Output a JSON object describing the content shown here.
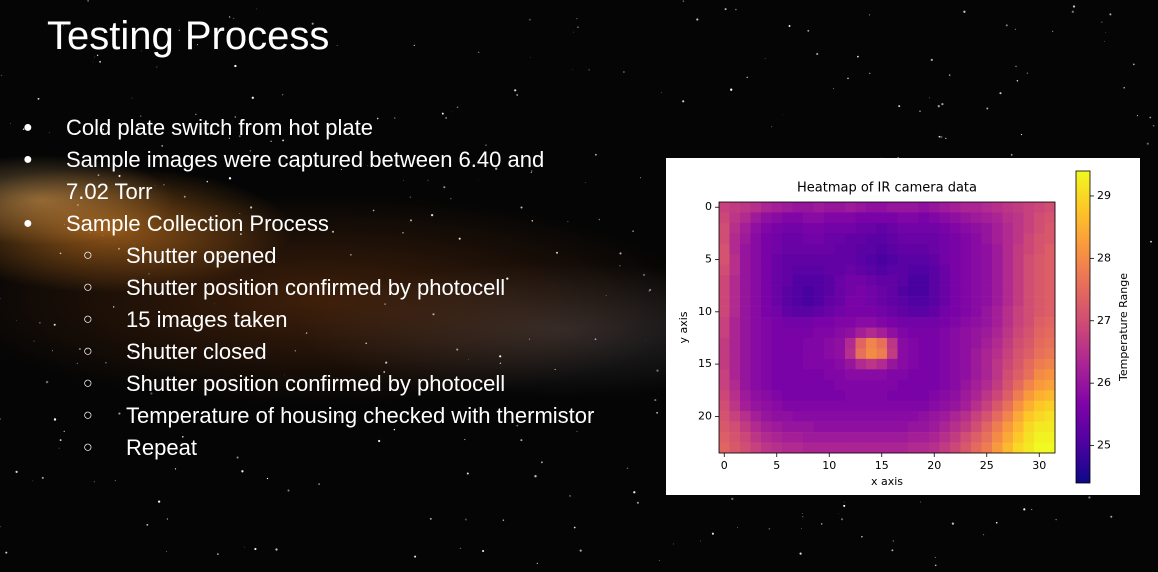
{
  "slide": {
    "title": "Testing Process",
    "bullets": [
      {
        "text": "Cold plate switch from hot plate",
        "children": []
      },
      {
        "text": "Sample images were captured between 6.40 and 7.02 Torr",
        "children": []
      },
      {
        "text": "Sample Collection Process",
        "children": [
          "Shutter opened",
          "Shutter position confirmed by photocell",
          "15 images taken",
          "Shutter closed",
          "Shutter position confirmed by photocell",
          "Temperature of housing checked with thermistor",
          "Repeat"
        ]
      }
    ]
  },
  "chart_data": {
    "type": "heatmap",
    "title": "Heatmap of IR camera data",
    "x_label": "x axis",
    "y_label": "y axis",
    "colorbar_label": "Temperature Range",
    "colormap": "plasma",
    "xlim": [
      -0.5,
      31.5
    ],
    "ylim": [
      23.5,
      -0.5
    ],
    "clim": [
      24.4,
      29.4
    ],
    "xticks": [
      0,
      5,
      10,
      15,
      20,
      25,
      30
    ],
    "yticks": [
      0,
      5,
      10,
      15,
      20
    ],
    "cticks": [
      25,
      26,
      27,
      28,
      29
    ],
    "values": [
      [
        26.8,
        26.7,
        26.6,
        26.5,
        26.3,
        26.2,
        26.1,
        26.0,
        26.0,
        26.1,
        26.0,
        26.0,
        26.1,
        26.0,
        25.9,
        25.9,
        26.0,
        26.0,
        26.0,
        25.9,
        26.0,
        26.1,
        26.2,
        26.3,
        26.3,
        26.4,
        26.5,
        26.6,
        26.7,
        26.8,
        26.9,
        27.0
      ],
      [
        26.9,
        26.6,
        26.4,
        26.1,
        25.9,
        25.8,
        25.7,
        25.7,
        25.8,
        25.8,
        25.7,
        25.7,
        25.7,
        25.6,
        25.6,
        25.6,
        25.6,
        25.7,
        25.7,
        25.6,
        25.7,
        25.8,
        25.9,
        26.0,
        26.1,
        26.2,
        26.3,
        26.5,
        26.6,
        26.8,
        27.0,
        27.1
      ],
      [
        27.0,
        26.5,
        26.2,
        25.9,
        25.7,
        25.6,
        25.5,
        25.5,
        25.6,
        25.6,
        25.5,
        25.5,
        25.5,
        25.4,
        25.4,
        25.3,
        25.4,
        25.5,
        25.5,
        25.5,
        25.5,
        25.6,
        25.7,
        25.8,
        25.9,
        26.0,
        26.2,
        26.4,
        26.6,
        26.8,
        27.0,
        27.2
      ],
      [
        27.0,
        26.4,
        26.1,
        25.8,
        25.6,
        25.5,
        25.4,
        25.4,
        25.5,
        25.5,
        25.4,
        25.4,
        25.3,
        25.3,
        25.2,
        25.2,
        25.3,
        25.4,
        25.4,
        25.4,
        25.4,
        25.5,
        25.6,
        25.7,
        25.8,
        26.0,
        26.2,
        26.4,
        26.6,
        26.9,
        27.1,
        27.2
      ],
      [
        27.1,
        26.4,
        26.0,
        25.8,
        25.6,
        25.5,
        25.4,
        25.4,
        25.4,
        25.4,
        25.4,
        25.3,
        25.3,
        25.2,
        25.2,
        25.1,
        25.2,
        25.3,
        25.3,
        25.3,
        25.4,
        25.5,
        25.6,
        25.7,
        25.8,
        25.9,
        26.1,
        26.4,
        26.7,
        26.9,
        27.1,
        27.3
      ],
      [
        27.1,
        26.5,
        26.0,
        25.8,
        25.6,
        25.4,
        25.3,
        25.3,
        25.3,
        25.3,
        25.3,
        25.3,
        25.3,
        25.2,
        25.1,
        25.0,
        25.1,
        25.2,
        25.2,
        25.2,
        25.3,
        25.5,
        25.6,
        25.7,
        25.8,
        25.9,
        26.1,
        26.4,
        26.7,
        27.0,
        27.2,
        27.3
      ],
      [
        27.0,
        26.5,
        26.0,
        25.8,
        25.6,
        25.4,
        25.3,
        25.2,
        25.2,
        25.2,
        25.3,
        25.3,
        25.4,
        25.3,
        25.2,
        25.1,
        25.2,
        25.2,
        25.1,
        25.1,
        25.2,
        25.4,
        25.6,
        25.7,
        25.8,
        25.9,
        26.1,
        26.4,
        26.7,
        27.0,
        27.2,
        27.3
      ],
      [
        26.9,
        26.4,
        26.0,
        25.8,
        25.6,
        25.4,
        25.3,
        25.1,
        25.1,
        25.1,
        25.2,
        25.4,
        25.5,
        25.5,
        25.4,
        25.3,
        25.3,
        25.2,
        25.0,
        25.0,
        25.2,
        25.4,
        25.6,
        25.7,
        25.8,
        25.9,
        26.1,
        26.4,
        26.7,
        27.0,
        27.2,
        27.3
      ],
      [
        26.9,
        26.4,
        26.0,
        25.8,
        25.6,
        25.4,
        25.2,
        25.1,
        25.0,
        25.1,
        25.2,
        25.4,
        25.5,
        25.6,
        25.5,
        25.4,
        25.3,
        25.1,
        25.0,
        25.0,
        25.2,
        25.4,
        25.6,
        25.7,
        25.8,
        25.9,
        26.1,
        26.4,
        26.7,
        27.0,
        27.2,
        27.3
      ],
      [
        26.9,
        26.4,
        26.0,
        25.8,
        25.6,
        25.4,
        25.2,
        25.1,
        25.0,
        25.1,
        25.3,
        25.4,
        25.6,
        25.6,
        25.5,
        25.4,
        25.3,
        25.2,
        25.1,
        25.1,
        25.2,
        25.4,
        25.6,
        25.7,
        25.8,
        25.9,
        26.1,
        26.4,
        26.7,
        27.0,
        27.2,
        27.3
      ],
      [
        26.9,
        26.4,
        26.0,
        25.8,
        25.6,
        25.5,
        25.3,
        25.2,
        25.2,
        25.3,
        25.4,
        25.5,
        25.6,
        25.6,
        25.6,
        25.5,
        25.4,
        25.3,
        25.2,
        25.2,
        25.3,
        25.5,
        25.6,
        25.7,
        25.8,
        26.0,
        26.2,
        26.5,
        26.8,
        27.0,
        27.2,
        27.3
      ],
      [
        26.8,
        26.3,
        26.0,
        25.8,
        25.7,
        25.6,
        25.5,
        25.5,
        25.5,
        25.6,
        25.6,
        25.7,
        25.7,
        25.8,
        25.8,
        25.7,
        25.6,
        25.5,
        25.5,
        25.5,
        25.5,
        25.6,
        25.7,
        25.8,
        25.9,
        26.0,
        26.2,
        26.5,
        26.8,
        27.0,
        27.3,
        27.4
      ],
      [
        26.8,
        26.3,
        26.0,
        25.8,
        25.7,
        25.6,
        25.6,
        25.6,
        25.6,
        25.7,
        25.7,
        25.8,
        25.9,
        26.2,
        26.4,
        26.2,
        25.9,
        25.7,
        25.6,
        25.6,
        25.6,
        25.7,
        25.8,
        25.9,
        26.0,
        26.1,
        26.3,
        26.6,
        26.9,
        27.1,
        27.4,
        27.5
      ],
      [
        26.7,
        26.3,
        26.0,
        25.8,
        25.7,
        25.6,
        25.6,
        25.6,
        25.7,
        25.7,
        25.8,
        25.9,
        26.4,
        27.4,
        27.9,
        27.6,
        26.6,
        25.8,
        25.7,
        25.6,
        25.6,
        25.7,
        25.8,
        25.9,
        26.0,
        26.2,
        26.4,
        26.7,
        27.0,
        27.2,
        27.5,
        27.6
      ],
      [
        26.7,
        26.3,
        26.0,
        25.8,
        25.7,
        25.6,
        25.6,
        25.6,
        25.7,
        25.7,
        25.8,
        25.9,
        26.5,
        27.6,
        28.0,
        27.8,
        26.7,
        25.8,
        25.7,
        25.6,
        25.6,
        25.7,
        25.8,
        25.9,
        26.1,
        26.3,
        26.5,
        26.8,
        27.1,
        27.3,
        27.6,
        27.7
      ],
      [
        26.7,
        26.3,
        26.0,
        25.8,
        25.7,
        25.6,
        25.6,
        25.6,
        25.7,
        25.7,
        25.7,
        25.8,
        26.0,
        26.4,
        26.6,
        26.4,
        26.0,
        25.8,
        25.7,
        25.6,
        25.6,
        25.7,
        25.8,
        25.9,
        26.1,
        26.3,
        26.6,
        26.9,
        27.2,
        27.5,
        27.8,
        27.9
      ],
      [
        26.8,
        26.3,
        26.0,
        25.8,
        25.7,
        25.6,
        25.6,
        25.6,
        25.6,
        25.6,
        25.7,
        25.7,
        25.8,
        25.8,
        25.8,
        25.8,
        25.7,
        25.7,
        25.6,
        25.6,
        25.6,
        25.7,
        25.8,
        25.9,
        26.1,
        26.3,
        26.6,
        27.0,
        27.3,
        27.6,
        28.0,
        28.1
      ],
      [
        26.8,
        26.4,
        26.0,
        25.8,
        25.7,
        25.6,
        25.6,
        25.6,
        25.6,
        25.6,
        25.6,
        25.7,
        25.7,
        25.7,
        25.7,
        25.7,
        25.7,
        25.6,
        25.6,
        25.6,
        25.6,
        25.7,
        25.8,
        26.0,
        26.2,
        26.4,
        26.7,
        27.1,
        27.5,
        27.9,
        28.2,
        28.3
      ],
      [
        26.9,
        26.5,
        26.1,
        25.9,
        25.8,
        25.7,
        25.6,
        25.6,
        25.6,
        25.6,
        25.6,
        25.6,
        25.7,
        25.7,
        25.7,
        25.7,
        25.6,
        25.6,
        25.6,
        25.6,
        25.7,
        25.8,
        25.9,
        26.1,
        26.3,
        26.6,
        26.9,
        27.3,
        27.8,
        28.2,
        28.5,
        28.6
      ],
      [
        27.0,
        26.6,
        26.2,
        26.0,
        25.9,
        25.8,
        25.7,
        25.7,
        25.7,
        25.7,
        25.7,
        25.7,
        25.7,
        25.7,
        25.7,
        25.7,
        25.7,
        25.7,
        25.7,
        25.7,
        25.8,
        25.9,
        26.0,
        26.2,
        26.5,
        26.8,
        27.2,
        27.6,
        28.1,
        28.5,
        28.8,
        28.9
      ],
      [
        27.1,
        26.8,
        26.5,
        26.2,
        26.0,
        25.9,
        25.9,
        25.8,
        25.8,
        25.8,
        25.8,
        25.8,
        25.8,
        25.8,
        25.8,
        25.8,
        25.8,
        25.8,
        25.8,
        25.9,
        26.0,
        26.1,
        26.3,
        26.5,
        26.8,
        27.1,
        27.5,
        27.9,
        28.4,
        28.8,
        29.0,
        29.1
      ],
      [
        27.2,
        27.0,
        26.7,
        26.4,
        26.2,
        26.1,
        26.0,
        26.0,
        26.0,
        25.9,
        25.9,
        25.9,
        25.9,
        25.9,
        25.9,
        25.9,
        25.9,
        25.9,
        26.0,
        26.0,
        26.1,
        26.3,
        26.5,
        26.7,
        27.0,
        27.4,
        27.8,
        28.2,
        28.6,
        29.0,
        29.2,
        29.2
      ],
      [
        27.3,
        27.1,
        26.9,
        26.6,
        26.4,
        26.3,
        26.2,
        26.2,
        26.1,
        26.1,
        26.1,
        26.1,
        26.1,
        26.1,
        26.1,
        26.1,
        26.1,
        26.1,
        26.2,
        26.2,
        26.3,
        26.5,
        26.7,
        27.0,
        27.3,
        27.6,
        28.0,
        28.4,
        28.8,
        29.1,
        29.3,
        29.3
      ],
      [
        27.4,
        27.2,
        27.0,
        26.8,
        26.6,
        26.5,
        26.4,
        26.4,
        26.3,
        26.3,
        26.3,
        26.3,
        26.3,
        26.3,
        26.3,
        26.3,
        26.3,
        26.3,
        26.4,
        26.4,
        26.5,
        26.7,
        26.9,
        27.2,
        27.5,
        27.8,
        28.2,
        28.6,
        29.0,
        29.2,
        29.4,
        29.4
      ]
    ]
  }
}
